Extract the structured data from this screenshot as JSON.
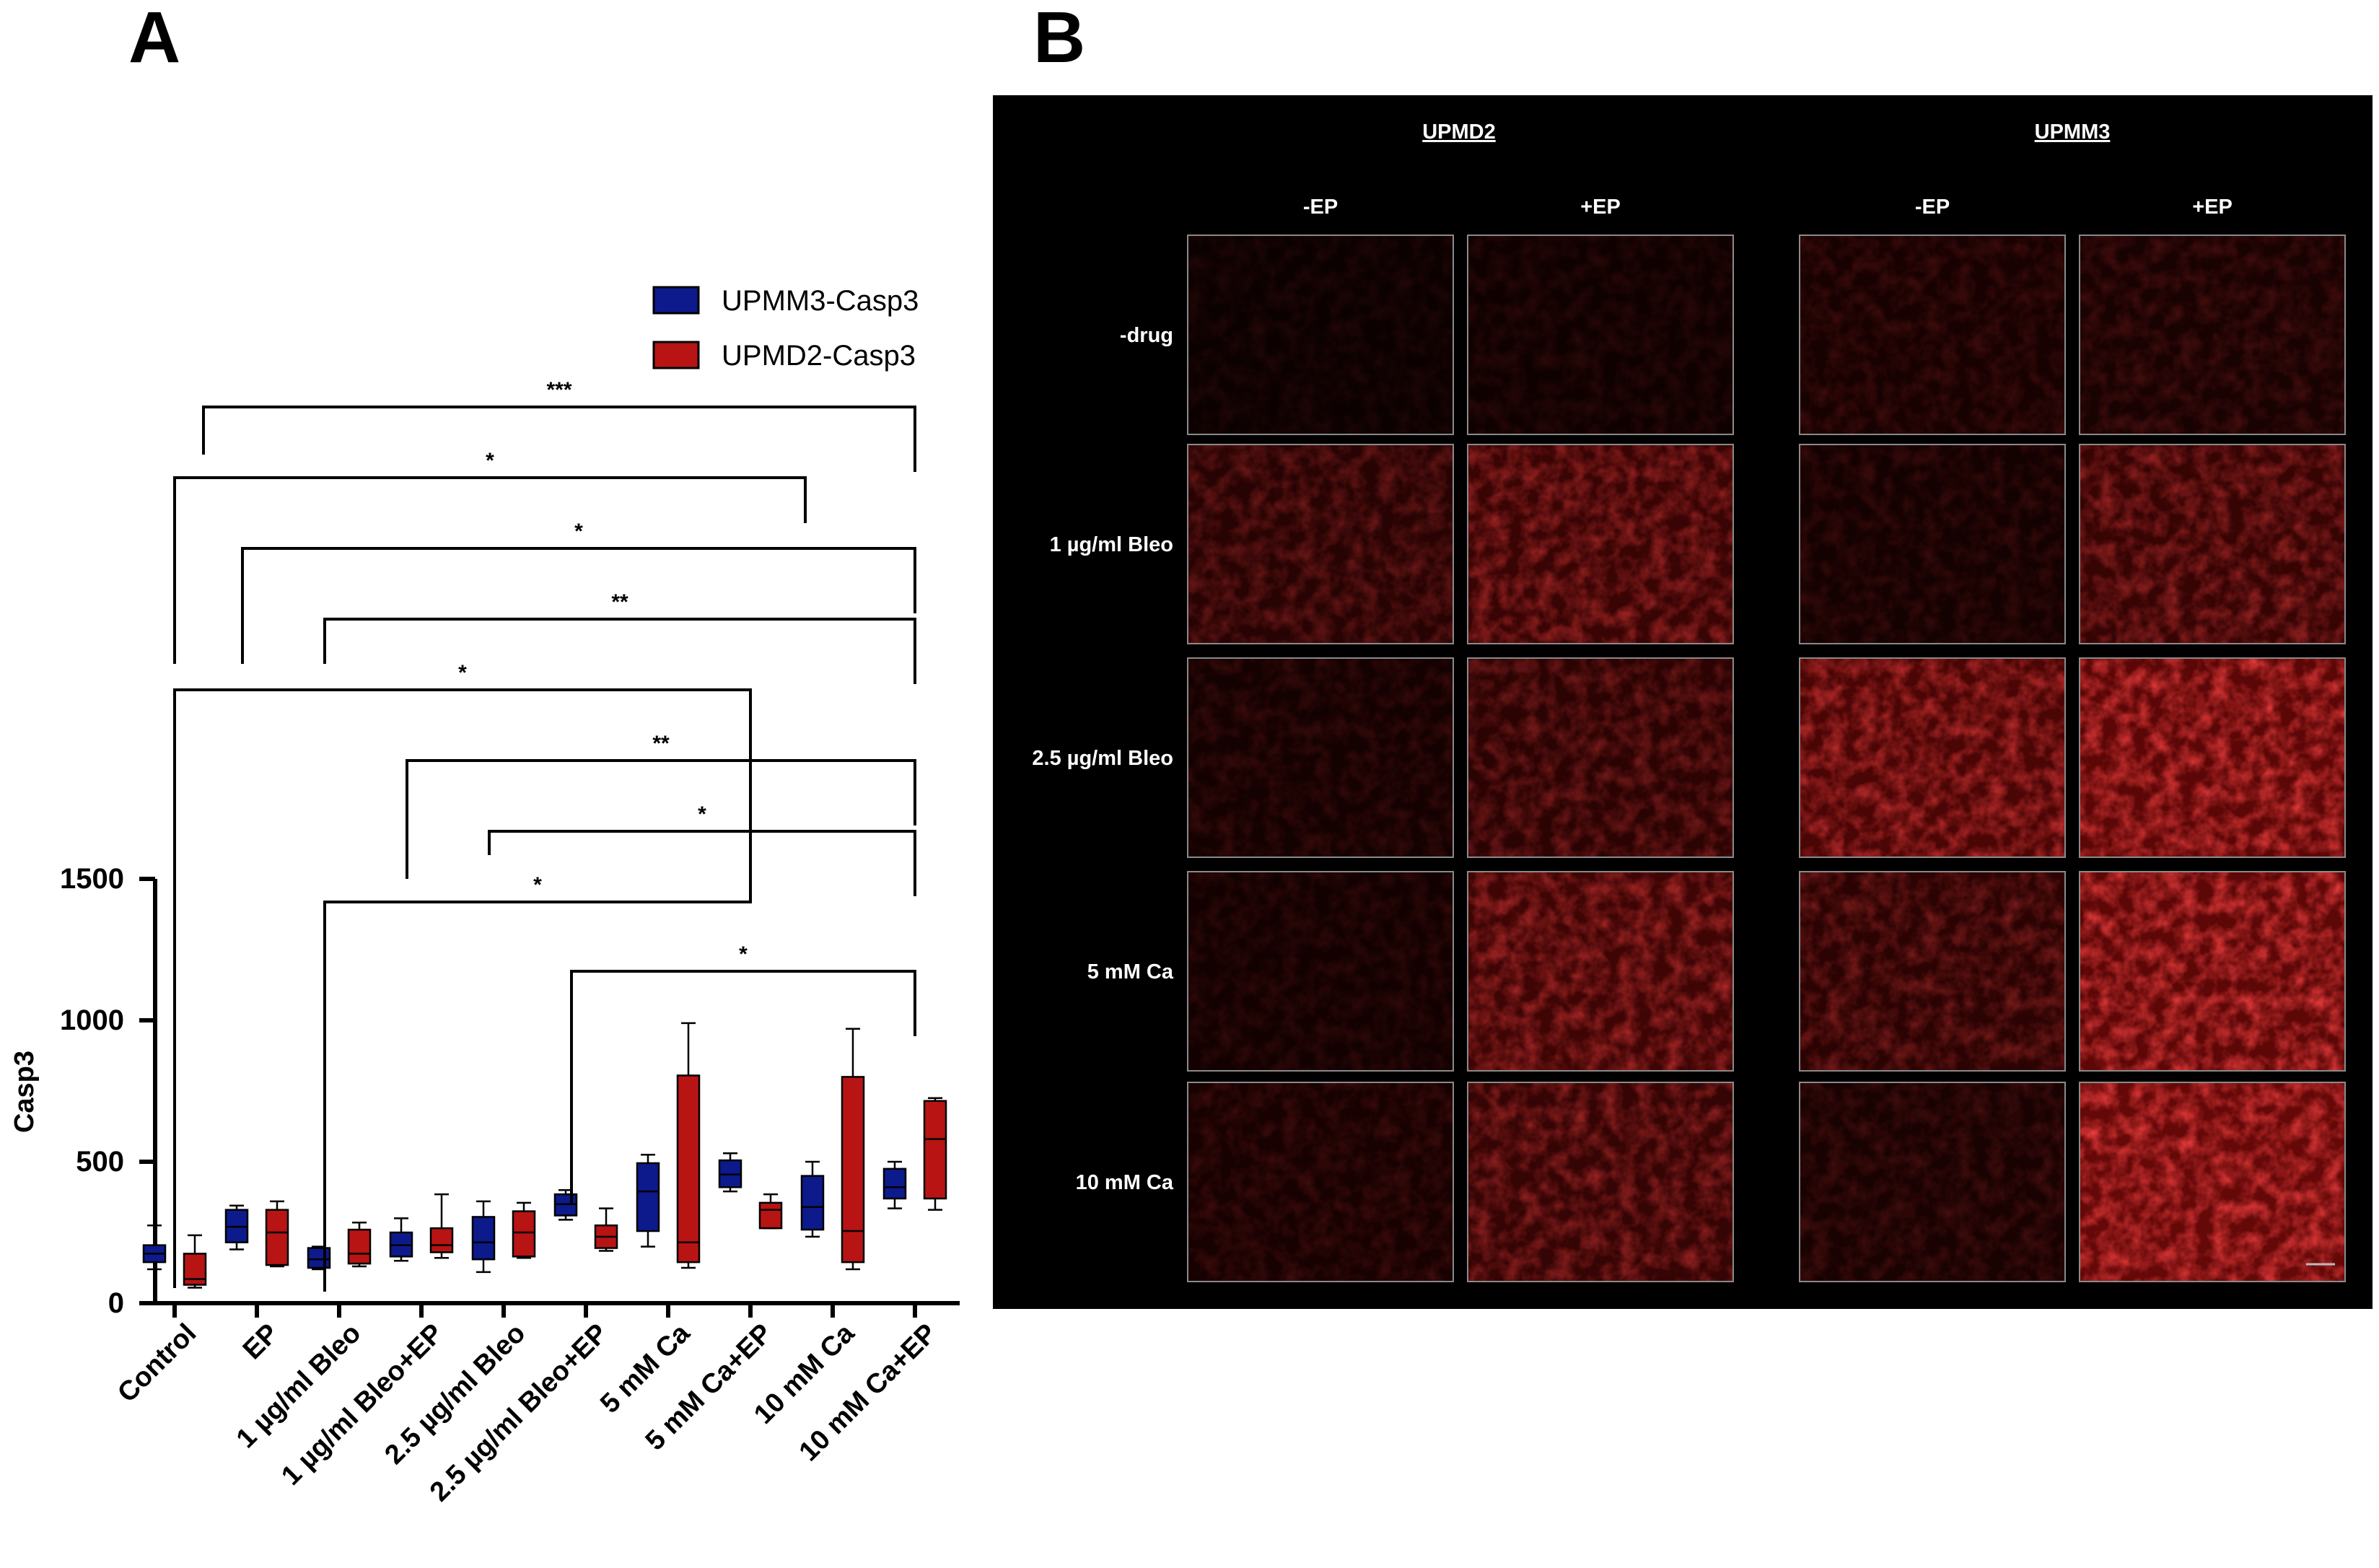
{
  "panel_a": {
    "label": "A"
  },
  "panel_b": {
    "label": "B"
  },
  "chart_data": {
    "type": "box",
    "ylabel": "Casp3",
    "ylim": [
      0,
      1500
    ],
    "yticks": [
      0,
      500,
      1000,
      1500
    ],
    "categories": [
      "Control",
      "EP",
      "1 µg/ml Bleo",
      "1 µg/ml Bleo+EP",
      "2.5 µg/ml Bleo",
      "2.5 µg/ml Bleo+EP",
      "5 mM Ca",
      "5 mM Ca+EP",
      "10 mM Ca",
      "10 mM Ca+EP"
    ],
    "legend": {
      "position": "top-right"
    },
    "series": [
      {
        "name": "UPMM3-Casp3",
        "color": "#0d1a8c",
        "boxes": [
          {
            "min": 120,
            "q1": 145,
            "median": 175,
            "q3": 205,
            "max": 275
          },
          {
            "min": 190,
            "q1": 215,
            "median": 270,
            "q3": 330,
            "max": 345
          },
          {
            "min": 120,
            "q1": 125,
            "median": 155,
            "q3": 195,
            "max": 200
          },
          {
            "min": 150,
            "q1": 165,
            "median": 205,
            "q3": 250,
            "max": 300
          },
          {
            "min": 110,
            "q1": 155,
            "median": 215,
            "q3": 305,
            "max": 360
          },
          {
            "min": 295,
            "q1": 310,
            "median": 350,
            "q3": 385,
            "max": 400
          },
          {
            "min": 200,
            "q1": 255,
            "median": 395,
            "q3": 495,
            "max": 525
          },
          {
            "min": 395,
            "q1": 410,
            "median": 455,
            "q3": 505,
            "max": 530
          },
          {
            "min": 235,
            "q1": 260,
            "median": 340,
            "q3": 450,
            "max": 500
          },
          {
            "min": 335,
            "q1": 370,
            "median": 410,
            "q3": 475,
            "max": 500
          }
        ]
      },
      {
        "name": "UPMD2-Casp3",
        "color": "#b81414",
        "boxes": [
          {
            "min": 55,
            "q1": 65,
            "median": 85,
            "q3": 175,
            "max": 240
          },
          {
            "min": 130,
            "q1": 135,
            "median": 250,
            "q3": 330,
            "max": 360
          },
          {
            "min": 130,
            "q1": 140,
            "median": 175,
            "q3": 260,
            "max": 285
          },
          {
            "min": 160,
            "q1": 180,
            "median": 205,
            "q3": 265,
            "max": 385
          },
          {
            "min": 160,
            "q1": 165,
            "median": 250,
            "q3": 325,
            "max": 355
          },
          {
            "min": 185,
            "q1": 195,
            "median": 235,
            "q3": 275,
            "max": 335
          },
          {
            "min": 125,
            "q1": 145,
            "median": 215,
            "q3": 805,
            "max": 990
          },
          {
            "min": 265,
            "q1": 265,
            "median": 330,
            "q3": 355,
            "max": 385
          },
          {
            "min": 120,
            "q1": 145,
            "median": 255,
            "q3": 800,
            "max": 970
          },
          {
            "min": 330,
            "q1": 370,
            "median": 580,
            "q3": 715,
            "max": 725
          }
        ]
      }
    ],
    "significance": [
      {
        "from": "Control",
        "to": "10 mM Ca+EP",
        "label": "***"
      },
      {
        "from": "Control",
        "to": "10 mM Ca",
        "label": "*"
      },
      {
        "from": "EP",
        "to": "10 mM Ca+EP",
        "label": "*"
      },
      {
        "from": "1 µg/ml Bleo",
        "to": "10 mM Ca+EP",
        "label": "**"
      },
      {
        "from": "Control",
        "to": "5 mM Ca+EP",
        "label": "*"
      },
      {
        "from": "1 µg/ml Bleo+EP",
        "to": "10 mM Ca+EP",
        "label": "**"
      },
      {
        "from": "2.5 µg/ml Bleo",
        "to": "10 mM Ca+EP",
        "label": "*"
      },
      {
        "from": "1 µg/ml Bleo",
        "to": "5 mM Ca+EP",
        "label": "*"
      },
      {
        "from": "2.5 µg/ml Bleo+EP",
        "to": "10 mM Ca+EP",
        "label": "*"
      }
    ]
  },
  "micrographs": {
    "groups": [
      {
        "title": "UPMD2",
        "columns": [
          "-EP",
          "+EP"
        ]
      },
      {
        "title": "UPMM3",
        "columns": [
          "-EP",
          "+EP"
        ]
      }
    ],
    "rows": [
      "-drug",
      "1 µg/ml Bleo",
      "2.5 µg/ml Bleo",
      "5 mM Ca",
      "10 mM Ca"
    ],
    "intensity": [
      [
        0.08,
        0.1,
        0.16,
        0.18
      ],
      [
        0.3,
        0.48,
        0.14,
        0.45
      ],
      [
        0.14,
        0.34,
        0.62,
        0.78
      ],
      [
        0.12,
        0.52,
        0.34,
        0.8
      ],
      [
        0.16,
        0.44,
        0.18,
        0.86
      ]
    ],
    "background": "#000000",
    "stain_color": "#e01010"
  }
}
